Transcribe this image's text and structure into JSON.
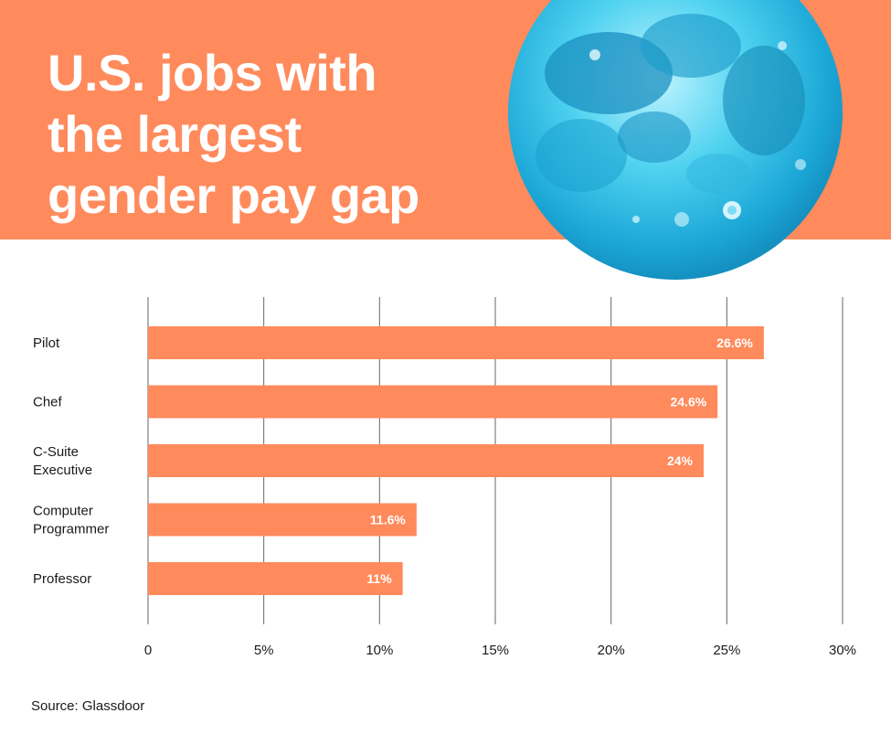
{
  "title_lines": [
    "U.S. jobs with",
    "the largest",
    "gender pay gap"
  ],
  "source": "Source: Glassdoor",
  "colors": {
    "header_bg": "#ff8a5c",
    "bar": "#ff8a5c",
    "moon": "#2cc4e8",
    "bar_label": "#ffffff",
    "grid": "#666666"
  },
  "icons": [
    "moon-image"
  ],
  "chart_data": {
    "type": "bar",
    "orientation": "horizontal",
    "title": "U.S. jobs with the largest gender pay gap",
    "categories": [
      [
        "Pilot"
      ],
      [
        "Chef"
      ],
      [
        "C-Suite",
        "Executive"
      ],
      [
        "Computer",
        "Programmer"
      ],
      [
        "Professor"
      ]
    ],
    "values": [
      26.6,
      24.6,
      24,
      11.6,
      11
    ],
    "value_labels": [
      "26.6%",
      "24.6%",
      "24%",
      "11.6%",
      "11%"
    ],
    "xlim": [
      0,
      30
    ],
    "x_ticks": [
      0,
      5,
      10,
      15,
      20,
      25,
      30
    ],
    "x_tick_labels": [
      "0",
      "5%",
      "10%",
      "15%",
      "20%",
      "25%",
      "30%"
    ],
    "grid": true,
    "xlabel": "",
    "ylabel": ""
  }
}
